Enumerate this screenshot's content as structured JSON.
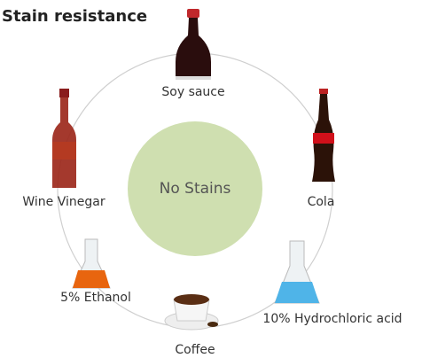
{
  "title": "Stain resistance",
  "center": {
    "label": "No Stains"
  },
  "nodes": [
    {
      "label": "Soy sauce"
    },
    {
      "label": "Cola"
    },
    {
      "label": "10% Hydrochloric acid"
    },
    {
      "label": "Coffee"
    },
    {
      "label": "5% Ethanol"
    },
    {
      "label": "Wine Vinegar"
    }
  ]
}
